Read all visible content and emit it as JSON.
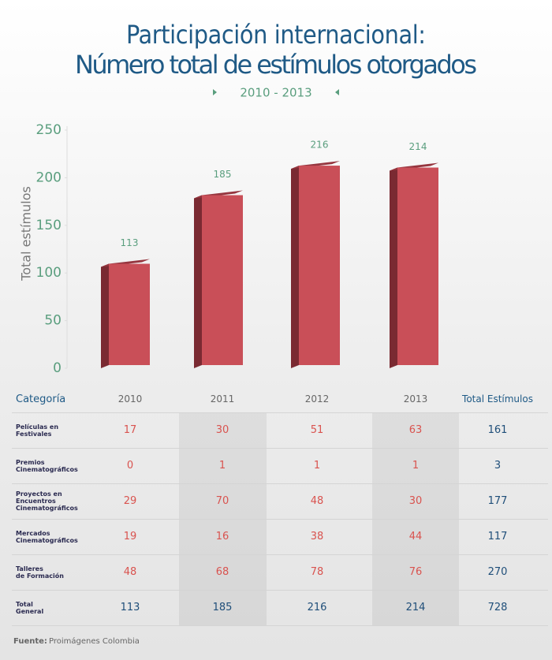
{
  "chart_data": {
    "type": "bar",
    "title": [
      "Participación internacional:",
      "Número total de estímulos otorgados"
    ],
    "subtitle": "2010 - 2013",
    "y_label": "Total estímulos",
    "categories": [
      "2010",
      "2011",
      "2012",
      "2013"
    ],
    "values": [
      113,
      185,
      216,
      214
    ],
    "color": "#c94f58",
    "ylim": [
      0,
      250
    ],
    "yticks": [
      0,
      50,
      100,
      150,
      200,
      250
    ]
  },
  "table": {
    "header": [
      "Categoría",
      "Total Estímulos"
    ],
    "rows": [
      [
        "Películas en\nFestivales",
        "17",
        "30",
        "51",
        "63",
        "161"
      ],
      [
        "Premios\nCinematográficos",
        "0",
        "1",
        "1",
        "1",
        "3"
      ],
      [
        "Proyectos en\nEncuentros\nCinematográficos",
        "29",
        "70",
        "48",
        "30",
        "177"
      ],
      [
        "Mercados\nCinematográficos",
        "19",
        "16",
        "38",
        "44",
        "117"
      ],
      [
        "Talleres\nde Formación",
        "48",
        "68",
        "78",
        "76",
        "270"
      ],
      [
        "Total\nGeneral",
        "113",
        "185",
        "216",
        "214",
        "728"
      ]
    ]
  },
  "source": {
    "label": "Fuente:",
    "text": "Proimágenes Colombia"
  }
}
